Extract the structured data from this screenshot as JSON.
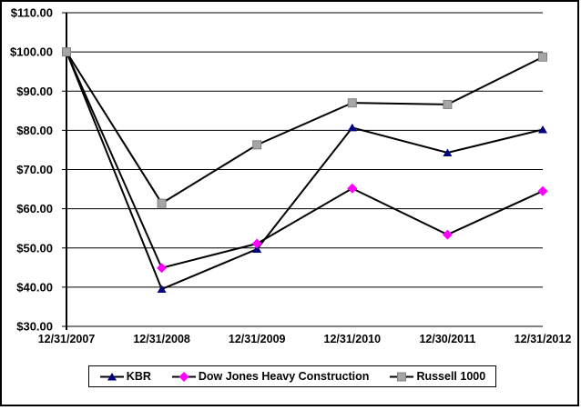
{
  "chart_data": {
    "type": "line",
    "title": "",
    "xlabel": "",
    "ylabel": "",
    "grid": "horizontal",
    "legend_position": "bottom",
    "ylim": [
      30,
      110
    ],
    "y_ticks": [
      {
        "value": 110,
        "label": "$110.00"
      },
      {
        "value": 100,
        "label": "$100.00"
      },
      {
        "value": 90,
        "label": "$90.00"
      },
      {
        "value": 80,
        "label": "$80.00"
      },
      {
        "value": 70,
        "label": "$70.00"
      },
      {
        "value": 60,
        "label": "$60.00"
      },
      {
        "value": 50,
        "label": "$50.00"
      },
      {
        "value": 40,
        "label": "$40.00"
      },
      {
        "value": 30,
        "label": "$30.00"
      }
    ],
    "categories": [
      "12/31/2007",
      "12/31/2008",
      "12/31/2009",
      "12/31/2010",
      "12/30/2011",
      "12/31/2012"
    ],
    "series": [
      {
        "name": "KBR",
        "marker": "triangle",
        "marker_color": "#000080",
        "line_color": "#000000",
        "values": [
          100,
          39.5,
          49.7,
          80.7,
          74.3,
          80.2
        ]
      },
      {
        "name": "Dow Jones Heavy Construction",
        "marker": "diamond",
        "marker_color": "#FF00FF",
        "line_color": "#000000",
        "values": [
          100,
          44.9,
          51.1,
          65.2,
          53.4,
          64.5
        ]
      },
      {
        "name": "Russell 1000",
        "marker": "square",
        "marker_color": "#A6A6A6",
        "line_color": "#000000",
        "values": [
          100,
          61.4,
          76.3,
          87.0,
          86.6,
          98.7
        ]
      }
    ],
    "colors": {
      "grid": "#000000",
      "axis": "#000000",
      "background": "#ffffff"
    }
  }
}
